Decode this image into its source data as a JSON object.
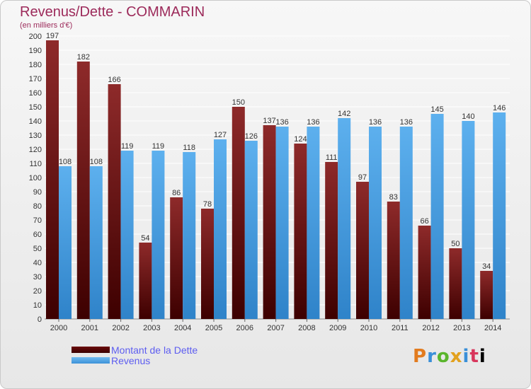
{
  "title": "Revenus/Dette - COMMARIN",
  "subtitle": "(en milliers d'€)",
  "logo": [
    "P",
    "r",
    "o",
    "x",
    "i",
    "t",
    "i"
  ],
  "legend": {
    "debt": "Montant de la Dette",
    "revenue": "Revenus"
  },
  "colors": {
    "debt": "#7a1414",
    "revenue": "#4ea3e6",
    "title": "#9c2a5a",
    "legend_text": "#5d5df0"
  },
  "chart_data": {
    "type": "bar",
    "categories": [
      "2000",
      "2001",
      "2002",
      "2003",
      "2004",
      "2005",
      "2006",
      "2007",
      "2008",
      "2009",
      "2010",
      "2011",
      "2012",
      "2013",
      "2014"
    ],
    "series": [
      {
        "name": "Montant de la Dette",
        "values": [
          197,
          182,
          166,
          54,
          86,
          78,
          150,
          137,
          124,
          111,
          97,
          83,
          66,
          50,
          34
        ]
      },
      {
        "name": "Revenus",
        "values": [
          108,
          108,
          119,
          119,
          118,
          127,
          126,
          136,
          136,
          142,
          136,
          136,
          145,
          140,
          146
        ]
      }
    ],
    "ylim": [
      0,
      200
    ],
    "yticks": [
      0,
      10,
      20,
      30,
      40,
      50,
      60,
      70,
      80,
      90,
      100,
      110,
      120,
      130,
      140,
      150,
      160,
      170,
      180,
      190,
      200
    ],
    "grid": true,
    "legend_position": "bottom-left"
  }
}
